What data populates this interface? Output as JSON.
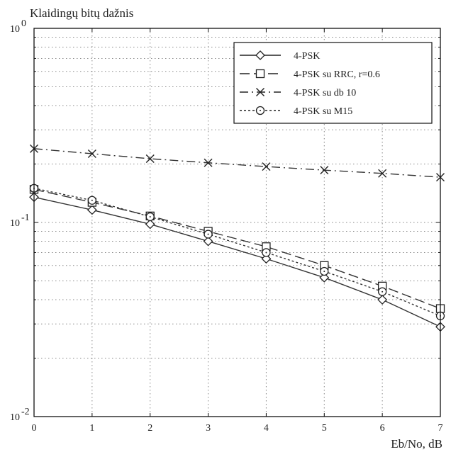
{
  "chart_data": {
    "type": "line",
    "title": "Klaidingų bitų dažnis",
    "xlabel": "Eb/No, dB",
    "ylabel": "",
    "x": [
      0,
      1,
      2,
      3,
      4,
      5,
      6,
      7
    ],
    "xlim": [
      0,
      7
    ],
    "ylim": [
      0.01,
      1
    ],
    "yscale": "log",
    "grid": true,
    "legend_position": "top-right",
    "x_tick_labels": [
      "0",
      "1",
      "2",
      "3",
      "4",
      "5",
      "6",
      "7"
    ],
    "y_tick_labels": [
      {
        "value": 1,
        "base": "10",
        "exp": "0"
      },
      {
        "value": 0.1,
        "base": "10",
        "exp": "-1"
      },
      {
        "value": 0.01,
        "base": "10",
        "exp": "-2"
      }
    ],
    "series": [
      {
        "name": "4-PSK",
        "marker": "diamond",
        "line": "solid",
        "color": "#333333",
        "values": [
          0.135,
          0.116,
          0.098,
          0.08,
          0.065,
          0.052,
          0.04,
          0.029
        ]
      },
      {
        "name": "4-PSK su RRC, r=0.6",
        "marker": "square",
        "line": "longdash",
        "color": "#333333",
        "values": [
          0.148,
          0.127,
          0.108,
          0.09,
          0.075,
          0.06,
          0.047,
          0.036
        ]
      },
      {
        "name": "4-PSK su db 10",
        "marker": "x",
        "line": "dashdot",
        "color": "#333333",
        "values": [
          0.24,
          0.226,
          0.213,
          0.203,
          0.194,
          0.186,
          0.179,
          0.171
        ]
      },
      {
        "name": "4-PSK su M15",
        "marker": "circle",
        "line": "dotted",
        "color": "#333333",
        "values": [
          0.15,
          0.13,
          0.107,
          0.087,
          0.07,
          0.056,
          0.044,
          0.033
        ]
      }
    ]
  }
}
